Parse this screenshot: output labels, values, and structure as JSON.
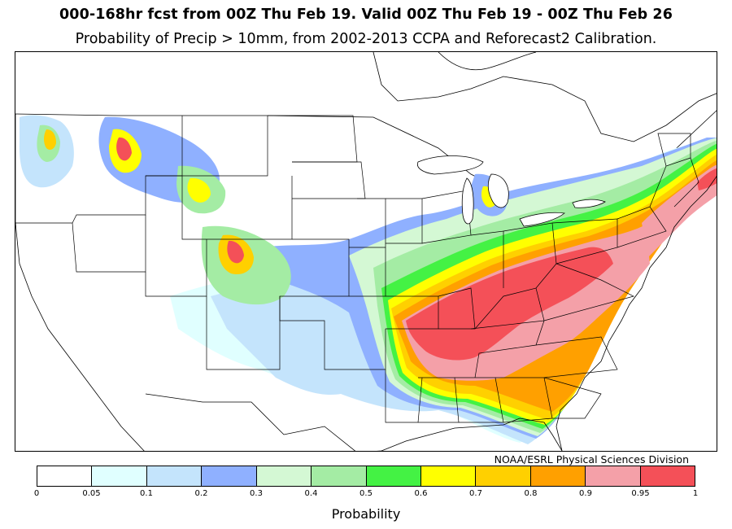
{
  "title_line1": "000-168hr fcst from 00Z Thu Feb 19.  Valid 00Z Thu Feb 19 - 00Z Thu Feb 26",
  "title_line2": "Probability of Precip > 10mm, from 2002-2013 CCPA and Reforecast2 Calibration.",
  "credit": "NOAA/ESRL Physical Sciences Division",
  "colorbar": {
    "label": "Probability",
    "ticks": [
      "0",
      "0.05",
      "0.1",
      "0.2",
      "0.3",
      "0.4",
      "0.5",
      "0.6",
      "0.7",
      "0.8",
      "0.9",
      "0.95",
      "1"
    ],
    "colors": [
      "#ffffff",
      "#e0ffff",
      "#c4e4fc",
      "#8fb0ff",
      "#d4f8d4",
      "#a4eca4",
      "#44f244",
      "#ffff00",
      "#ffd000",
      "#ffa000",
      "#f4a0a8",
      "#f45058"
    ]
  },
  "map": {
    "region": "contiguous-united-states",
    "features": [
      "state-borders",
      "coastlines",
      "great-lakes",
      "probability-contours"
    ],
    "max_probability_region": "lower-mississippi-and-tennessee-valleys"
  }
}
